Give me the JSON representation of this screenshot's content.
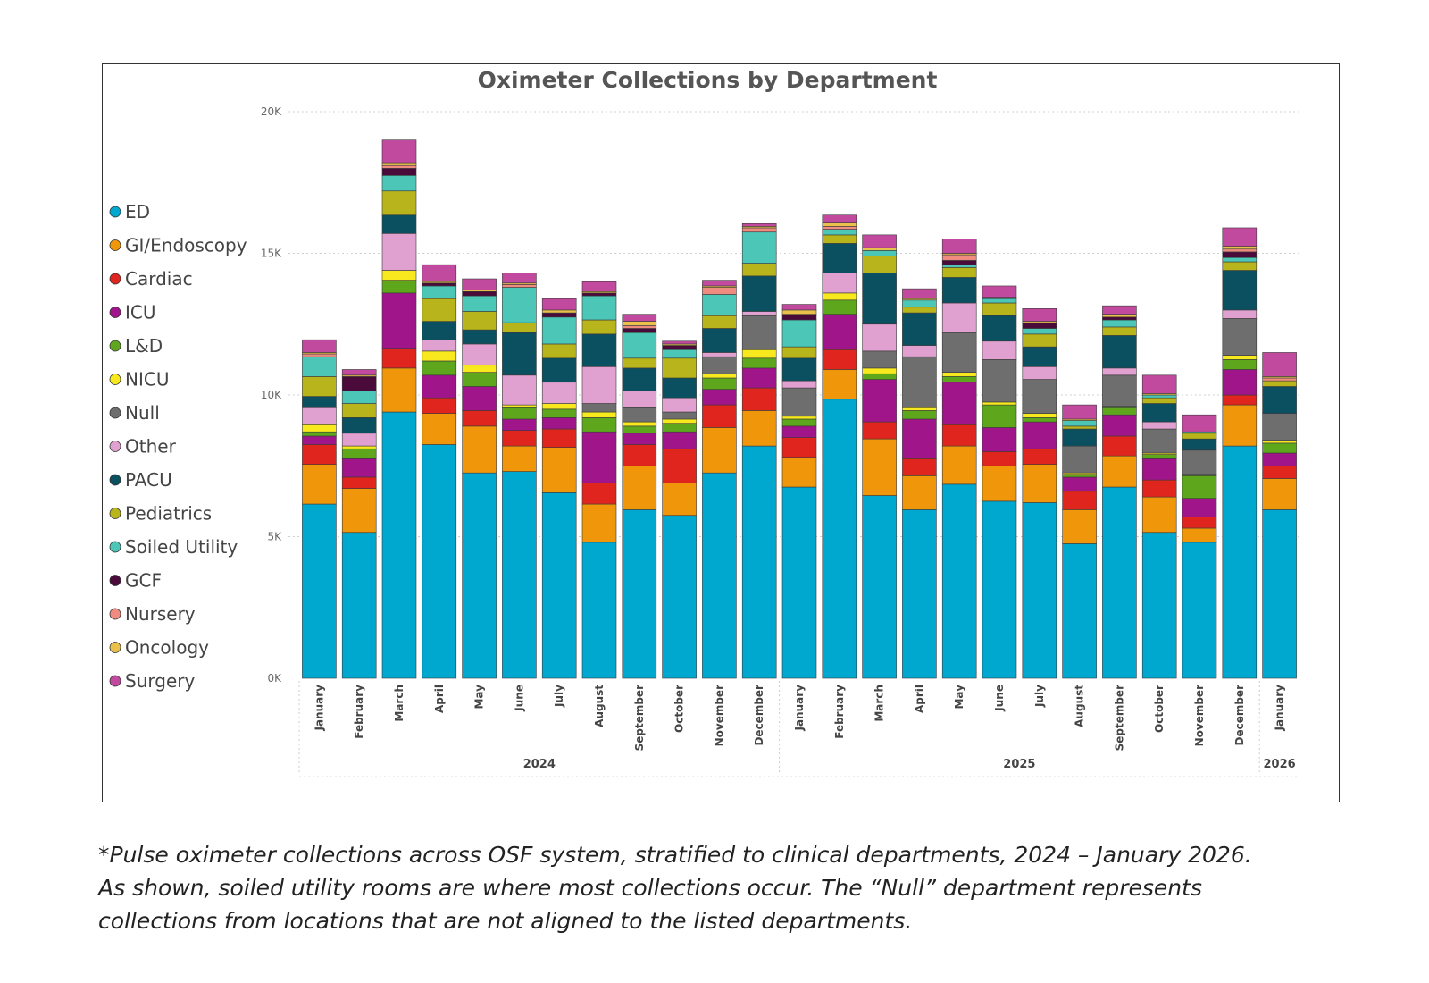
{
  "chart_data": {
    "type": "bar",
    "stacked": true,
    "title": "Oximeter Collections by Department",
    "xlabel": "",
    "ylabel": "",
    "ylim": [
      0,
      20000
    ],
    "yticks": [
      {
        "value": 0,
        "label": "0K"
      },
      {
        "value": 5000,
        "label": "5K"
      },
      {
        "value": 10000,
        "label": "10K"
      },
      {
        "value": 15000,
        "label": "15K"
      },
      {
        "value": 20000,
        "label": "20K"
      }
    ],
    "grid": true,
    "legend_position": "left",
    "categories": [
      "January",
      "February",
      "March",
      "April",
      "May",
      "June",
      "July",
      "August",
      "September",
      "October",
      "November",
      "December",
      "January",
      "February",
      "March",
      "April",
      "May",
      "June",
      "July",
      "August",
      "September",
      "October",
      "November",
      "December",
      "January"
    ],
    "year_groups": [
      {
        "label": "2024",
        "start": 0,
        "end": 11
      },
      {
        "label": "2025",
        "start": 12,
        "end": 23
      },
      {
        "label": "2026",
        "start": 24,
        "end": 24
      }
    ],
    "series": [
      {
        "name": "ED",
        "color": "#00a8cf",
        "values": [
          6150,
          5150,
          9400,
          8250,
          7250,
          7300,
          6550,
          4800,
          5950,
          5750,
          7250,
          8200,
          6750,
          9850,
          6450,
          5950,
          6850,
          6250,
          6200,
          4750,
          6750,
          5150,
          4800,
          8200,
          5950
        ]
      },
      {
        "name": "GI/Endoscopy",
        "color": "#f0960a",
        "values": [
          1400,
          1550,
          1550,
          1100,
          1650,
          900,
          1600,
          1350,
          1550,
          1150,
          1600,
          1250,
          1050,
          1050,
          2000,
          1200,
          1350,
          1250,
          1350,
          1200,
          1100,
          1250,
          500,
          1450,
          1100
        ]
      },
      {
        "name": "Cardiac",
        "color": "#e0251e",
        "values": [
          700,
          400,
          700,
          550,
          550,
          550,
          650,
          750,
          750,
          1200,
          800,
          800,
          700,
          700,
          600,
          600,
          750,
          500,
          550,
          650,
          700,
          600,
          400,
          350,
          450
        ]
      },
      {
        "name": "ICU",
        "color": "#a0168a",
        "values": [
          300,
          650,
          1950,
          800,
          850,
          400,
          400,
          1800,
          400,
          600,
          550,
          700,
          400,
          1250,
          1500,
          1400,
          1500,
          850,
          950,
          500,
          750,
          750,
          650,
          900,
          450
        ]
      },
      {
        "name": "L&D",
        "color": "#5ea71d",
        "values": [
          150,
          350,
          450,
          500,
          500,
          400,
          300,
          500,
          250,
          300,
          400,
          350,
          250,
          500,
          200,
          300,
          200,
          800,
          150,
          100,
          250,
          150,
          800,
          350,
          350
        ]
      },
      {
        "name": "NICU",
        "color": "#f7e91d",
        "values": [
          250,
          100,
          350,
          350,
          250,
          100,
          200,
          200,
          150,
          150,
          150,
          300,
          100,
          250,
          200,
          100,
          150,
          100,
          150,
          50,
          50,
          50,
          50,
          150,
          100
        ]
      },
      {
        "name": "Null",
        "color": "#6e6e6e",
        "values": [
          0,
          0,
          0,
          0,
          0,
          0,
          0,
          300,
          500,
          250,
          600,
          1200,
          1000,
          0,
          600,
          1800,
          1400,
          1500,
          1200,
          950,
          1100,
          850,
          850,
          1300,
          950
        ]
      },
      {
        "name": "Other",
        "color": "#e0a1d0",
        "values": [
          600,
          450,
          1300,
          400,
          750,
          1050,
          750,
          1300,
          600,
          500,
          150,
          150,
          250,
          700,
          950,
          400,
          1050,
          650,
          450,
          0,
          250,
          250,
          0,
          300,
          0
        ]
      },
      {
        "name": "PACU",
        "color": "#0a5060",
        "values": [
          400,
          550,
          650,
          650,
          500,
          1500,
          850,
          1150,
          800,
          700,
          850,
          1250,
          800,
          1050,
          1800,
          1150,
          900,
          900,
          700,
          600,
          1150,
          650,
          400,
          1400,
          950
        ]
      },
      {
        "name": "Pediatrics",
        "color": "#b8b41c",
        "values": [
          700,
          500,
          850,
          800,
          650,
          350,
          500,
          500,
          350,
          700,
          450,
          450,
          400,
          300,
          600,
          200,
          350,
          450,
          450,
          100,
          300,
          200,
          200,
          300,
          200
        ]
      },
      {
        "name": "Soiled Utility",
        "color": "#4bc6b7",
        "values": [
          700,
          450,
          550,
          450,
          550,
          1250,
          950,
          850,
          900,
          300,
          750,
          1100,
          950,
          200,
          200,
          250,
          100,
          150,
          200,
          200,
          250,
          100,
          50,
          150,
          0
        ]
      },
      {
        "name": "GCF",
        "color": "#4a0a3a",
        "values": [
          0,
          500,
          250,
          100,
          150,
          0,
          150,
          100,
          150,
          150,
          0,
          0,
          200,
          0,
          0,
          0,
          150,
          0,
          200,
          0,
          100,
          0,
          0,
          200,
          0
        ]
      },
      {
        "name": "Nursery",
        "color": "#f08b80",
        "values": [
          100,
          0,
          100,
          0,
          0,
          100,
          0,
          0,
          100,
          0,
          250,
          150,
          0,
          100,
          0,
          0,
          200,
          0,
          0,
          0,
          0,
          0,
          0,
          100,
          100
        ]
      },
      {
        "name": "Oncology",
        "color": "#e8c04a",
        "values": [
          50,
          50,
          100,
          50,
          50,
          50,
          100,
          50,
          150,
          50,
          50,
          50,
          150,
          150,
          100,
          50,
          50,
          50,
          50,
          50,
          100,
          50,
          0,
          100,
          50
        ]
      },
      {
        "name": "Surgery",
        "color": "#c24a9e",
        "values": [
          450,
          200,
          800,
          600,
          400,
          350,
          400,
          350,
          250,
          100,
          200,
          100,
          200,
          250,
          450,
          350,
          500,
          400,
          450,
          500,
          300,
          650,
          600,
          650,
          850
        ]
      }
    ]
  },
  "caption": {
    "line1": "*Pulse oximeter collections across OSF system, stratified to clinical departments, 2024 – January 2026.",
    "line2": "As shown, soiled utility rooms are where most collections occur. The “Null” department represents",
    "line3": "collections from locations that are not aligned to the listed departments."
  }
}
